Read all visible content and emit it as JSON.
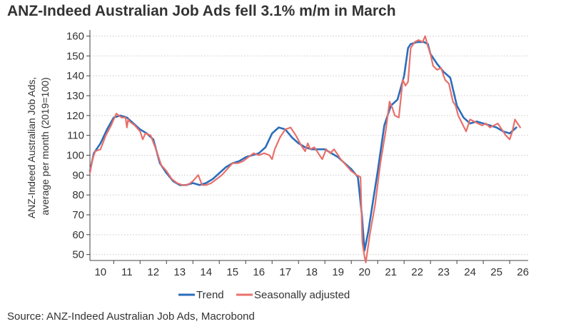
{
  "title": "ANZ-Indeed Australian Job Ads fell 3.1% m/m in March",
  "source": "Source: ANZ-Indeed Australian Job Ads, Macrobond",
  "colors": {
    "trend": "#2a6ebb",
    "seasonally_adjusted": "#e8706b",
    "grid": "#c8c8c8",
    "axis": "#444444"
  },
  "chart_data": {
    "type": "line",
    "title": "ANZ-Indeed Australian Job Ads fell 3.1% m/m in March",
    "ylabel": "ANZ-Indeed Australian Job Ads, average per month (2019=100)",
    "ylabel_lines": [
      "ANZ-Indeed Australian Job Ads,",
      "average per month (2019=100)"
    ],
    "xlabel": "",
    "ylim": [
      47,
      162
    ],
    "yticks": [
      50,
      60,
      70,
      80,
      90,
      100,
      110,
      120,
      130,
      140,
      150,
      160
    ],
    "xlim": [
      2009.6,
      2026.2
    ],
    "xticks": [
      {
        "label": "10",
        "x": 2010.0
      },
      {
        "label": "11",
        "x": 2011.0
      },
      {
        "label": "12",
        "x": 2012.0
      },
      {
        "label": "13",
        "x": 2013.0
      },
      {
        "label": "14",
        "x": 2014.0
      },
      {
        "label": "15",
        "x": 2015.0
      },
      {
        "label": "16",
        "x": 2016.0
      },
      {
        "label": "17",
        "x": 2017.0
      },
      {
        "label": "18",
        "x": 2018.0
      },
      {
        "label": "19",
        "x": 2019.0
      },
      {
        "label": "20",
        "x": 2020.0
      },
      {
        "label": "21",
        "x": 2021.0
      },
      {
        "label": "22",
        "x": 2022.0
      },
      {
        "label": "23",
        "x": 2023.0
      },
      {
        "label": "24",
        "x": 2024.0
      },
      {
        "label": "25",
        "x": 2025.0
      },
      {
        "label": "26",
        "x": 2026.0
      }
    ],
    "grid": true,
    "legend_position": "bottom-center",
    "series": [
      {
        "name": "Trend",
        "x": [
          2009.6,
          2009.75,
          2010.0,
          2010.25,
          2010.5,
          2010.75,
          2011.0,
          2011.25,
          2011.5,
          2011.75,
          2012.0,
          2012.25,
          2012.5,
          2012.75,
          2013.0,
          2013.25,
          2013.5,
          2013.75,
          2014.0,
          2014.25,
          2014.5,
          2014.75,
          2015.0,
          2015.25,
          2015.5,
          2015.75,
          2016.0,
          2016.25,
          2016.5,
          2016.75,
          2017.0,
          2017.25,
          2017.5,
          2017.75,
          2018.0,
          2018.25,
          2018.5,
          2018.75,
          2019.0,
          2019.25,
          2019.5,
          2019.75,
          2019.9,
          2020.0,
          2020.15,
          2020.3,
          2020.5,
          2020.75,
          2021.0,
          2021.25,
          2021.5,
          2021.65,
          2021.75,
          2022.0,
          2022.25,
          2022.4,
          2022.5,
          2022.75,
          2023.0,
          2023.25,
          2023.5,
          2023.75,
          2024.0,
          2024.25,
          2024.5,
          2024.75,
          2025.0,
          2025.25,
          2025.5,
          2025.75
        ],
        "values": [
          92,
          101,
          106,
          113,
          119,
          120,
          119,
          116,
          113,
          111,
          108,
          96,
          91,
          87,
          85,
          85,
          86,
          85,
          86,
          88,
          91,
          94,
          96,
          97,
          99,
          100,
          101,
          104,
          111,
          114,
          113,
          109,
          106,
          104,
          103,
          103,
          103,
          101,
          99,
          96,
          93,
          89,
          70,
          52,
          62,
          75,
          92,
          115,
          125,
          128,
          140,
          154,
          156,
          157,
          157,
          156,
          151,
          146,
          142,
          139,
          125,
          119,
          116,
          117,
          116,
          115,
          114,
          112,
          111,
          114
        ]
      },
      {
        "name": "Seasonally adjusted",
        "x": [
          2009.6,
          2009.7,
          2009.8,
          2010.0,
          2010.2,
          2010.4,
          2010.6,
          2010.8,
          2010.95,
          2011.0,
          2011.05,
          2011.1,
          2011.3,
          2011.5,
          2011.6,
          2011.7,
          2011.9,
          2012.1,
          2012.3,
          2012.5,
          2012.7,
          2012.9,
          2013.1,
          2013.3,
          2013.5,
          2013.7,
          2013.85,
          2014.0,
          2014.2,
          2014.4,
          2014.6,
          2014.8,
          2015.0,
          2015.2,
          2015.4,
          2015.6,
          2015.8,
          2016.0,
          2016.2,
          2016.4,
          2016.5,
          2016.6,
          2016.8,
          2017.0,
          2017.2,
          2017.4,
          2017.6,
          2017.75,
          2017.85,
          2017.95,
          2018.1,
          2018.25,
          2018.4,
          2018.55,
          2018.7,
          2018.85,
          2019.0,
          2019.1,
          2019.3,
          2019.5,
          2019.7,
          2019.85,
          2019.92,
          2020.0,
          2020.05,
          2020.2,
          2020.4,
          2020.6,
          2020.8,
          2020.95,
          2021.05,
          2021.15,
          2021.3,
          2021.45,
          2021.55,
          2021.65,
          2021.75,
          2021.9,
          2022.05,
          2022.2,
          2022.3,
          2022.4,
          2022.5,
          2022.6,
          2022.75,
          2022.9,
          2023.05,
          2023.2,
          2023.35,
          2023.45,
          2023.55,
          2023.7,
          2023.85,
          2024.0,
          2024.15,
          2024.3,
          2024.45,
          2024.6,
          2024.75,
          2024.9,
          2025.05,
          2025.2,
          2025.35,
          2025.5,
          2025.6,
          2025.7,
          2025.8,
          2025.9
        ],
        "values": [
          91,
          98,
          102,
          103,
          110,
          115,
          121,
          119,
          119,
          114,
          118,
          117,
          115,
          112,
          108,
          111,
          110,
          103,
          95,
          92,
          88,
          86,
          85,
          85,
          87,
          90,
          85,
          85,
          86,
          88,
          90,
          93,
          96,
          96,
          97,
          99,
          101,
          100,
          101,
          100,
          98,
          103,
          109,
          113,
          114,
          110,
          105,
          102,
          106,
          103,
          104,
          101,
          98,
          103,
          101,
          103,
          100,
          98,
          95,
          92,
          90,
          89,
          56,
          49,
          46,
          60,
          75,
          96,
          112,
          127,
          124,
          120,
          119,
          138,
          135,
          137,
          154,
          157,
          158,
          157,
          160,
          155,
          151,
          145,
          143,
          144,
          138,
          136,
          127,
          125,
          120,
          116,
          112,
          118,
          117,
          116,
          115,
          116,
          114,
          115,
          116,
          113,
          110,
          108,
          112,
          118,
          116,
          114
        ]
      }
    ]
  }
}
